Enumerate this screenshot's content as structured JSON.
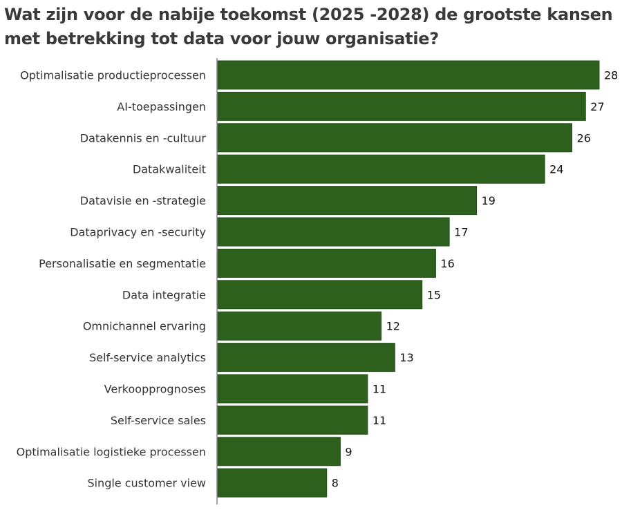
{
  "chart_data": {
    "type": "bar",
    "orientation": "horizontal",
    "title": "Wat zijn voor de nabije toekomst (2025 -2028) de grootste kansen met betrekking tot data voor jouw organisatie?",
    "categories": [
      "Optimalisatie productieprocessen",
      "AI-toepassingen",
      "Datakennis en -cultuur",
      "Datakwaliteit",
      "Datavisie en -strategie",
      "Dataprivacy en -security",
      "Personalisatie en segmentatie",
      "Data integratie",
      "Omnichannel ervaring",
      "Self-service analytics",
      "Verkoopprognoses",
      "Self-service sales",
      "Optimalisatie logistieke processen",
      "Single customer view"
    ],
    "values": [
      28,
      27,
      26,
      24,
      19,
      17,
      16,
      15,
      12,
      13,
      11,
      11,
      9,
      8
    ],
    "xlim": [
      0,
      28
    ],
    "grid": false,
    "data_labels": true,
    "bar_color": "#2d5f1d"
  }
}
